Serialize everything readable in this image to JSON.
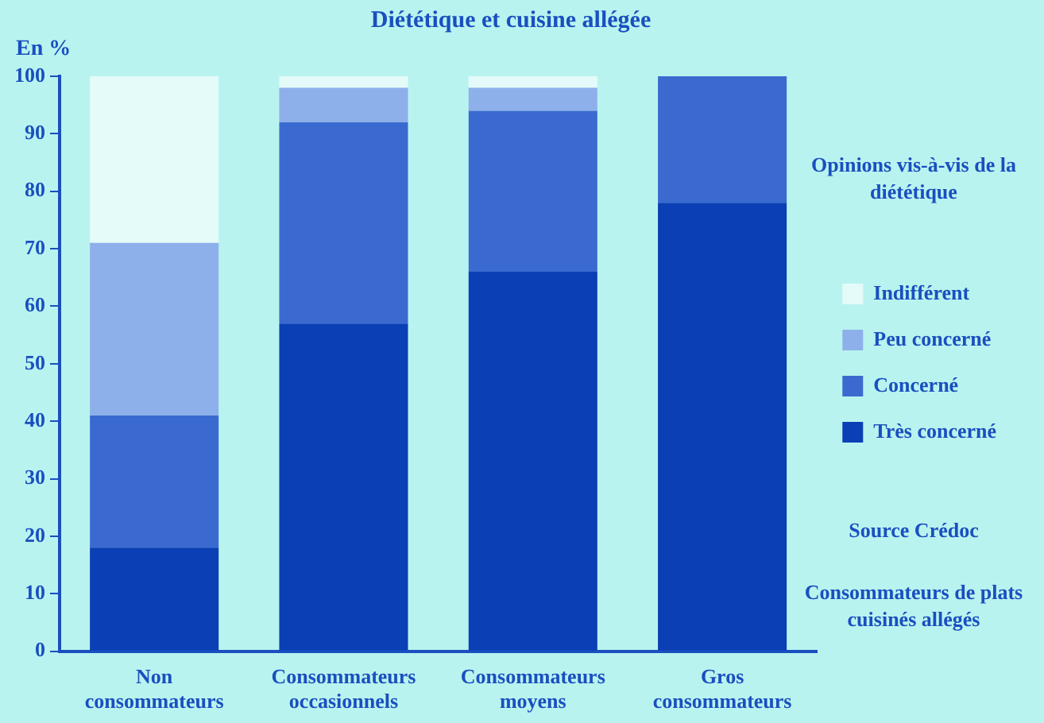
{
  "chart_data": {
    "type": "bar",
    "stacked": true,
    "title": "Diététique et cuisine allégée",
    "ylabel": "En %",
    "legend_title": "Opinions vis-à-vis de la diététique",
    "categories": [
      "Non consommateurs",
      "Consommateurs occasionnels",
      "Consommateurs moyens",
      "Gros consommateurs"
    ],
    "series": [
      {
        "name": "Très concerné",
        "color": "#0b3fb5",
        "values": [
          18,
          57,
          66,
          78
        ]
      },
      {
        "name": "Concerné",
        "color": "#3a6ad0",
        "values": [
          23,
          35,
          28,
          22
        ]
      },
      {
        "name": "Peu concerné",
        "color": "#8eb0ea",
        "values": [
          30,
          6,
          4,
          0
        ]
      },
      {
        "name": "Indifférent",
        "color": "#e4fbf9",
        "values": [
          29,
          2,
          2,
          0
        ]
      }
    ],
    "ylim": [
      0,
      100
    ],
    "yticks": [
      0,
      10,
      20,
      30,
      40,
      50,
      60,
      70,
      80,
      90,
      100
    ],
    "grid": false,
    "legend": "right",
    "annotations": [
      "Source Crédoc",
      "Consommateurs de plats cuisinés allégés"
    ]
  }
}
